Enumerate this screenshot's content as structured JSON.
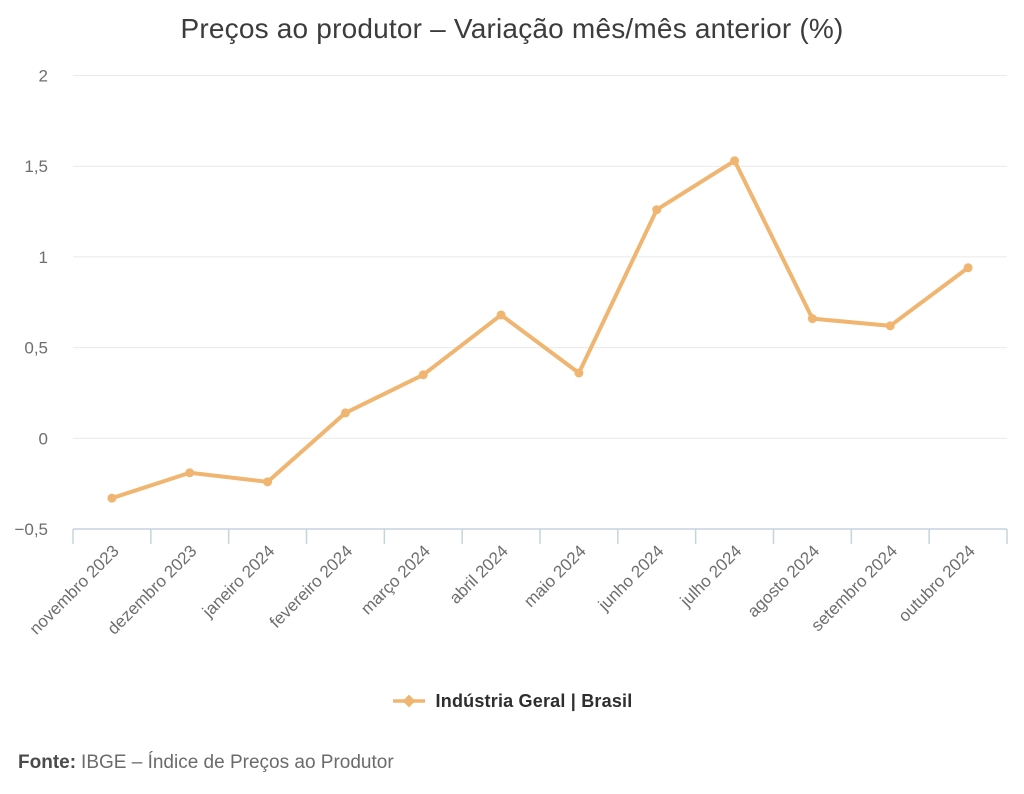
{
  "chart_data": {
    "type": "line",
    "title": "Preços ao produtor – Variação mês/mês anterior (%)",
    "categories": [
      "novembro 2023",
      "dezembro 2023",
      "janeiro 2024",
      "fevereiro 2024",
      "março 2024",
      "abril 2024",
      "maio 2024",
      "junho 2024",
      "julho 2024",
      "agosto 2024",
      "setembro 2024",
      "outubro 2024"
    ],
    "series": [
      {
        "name": "Indústria Geral | Brasil",
        "values": [
          -0.33,
          -0.19,
          -0.24,
          0.14,
          0.35,
          0.68,
          0.36,
          1.26,
          1.53,
          0.66,
          0.62,
          0.94
        ]
      }
    ],
    "xlabel": "",
    "ylabel": "",
    "ylim": [
      -0.5,
      2
    ],
    "yticks": [
      {
        "label": "2",
        "value": 2
      },
      {
        "label": "1,5",
        "value": 1.5
      },
      {
        "label": "1",
        "value": 1
      },
      {
        "label": "0,5",
        "value": 0.5
      },
      {
        "label": "0",
        "value": 0
      },
      {
        "label": "−0,5",
        "value": -0.5
      }
    ],
    "grid": true,
    "legend_position": "bottom",
    "line_color": "#EFB571",
    "grid_color": "#EAEAEA",
    "axis_color": "#C6D4DE",
    "label_color": "#6E6E6E",
    "title_color": "#3C3C3C"
  },
  "footer": {
    "prefix": "Fonte:",
    "text": "IBGE – Índice de Preços ao Produtor"
  }
}
